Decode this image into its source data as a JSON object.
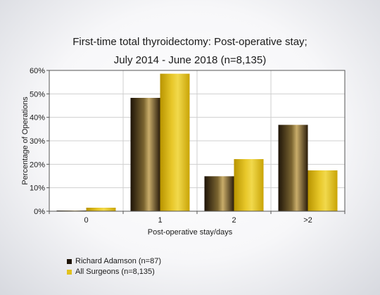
{
  "chart_data": {
    "type": "bar",
    "title": "First-time total thyroidectomy: Post-operative stay;",
    "subtitle": "July 2014 - June 2018 (n=8,135)",
    "xlabel": "Post-operative stay/days",
    "ylabel": "Percentage of Operations",
    "categories": [
      "0",
      "1",
      "2",
      ">2"
    ],
    "ylim": [
      0,
      60
    ],
    "yticks": [
      "0%",
      "10%",
      "20%",
      "30%",
      "40%",
      "50%",
      "60%"
    ],
    "grid": true,
    "legend_position": "bottom-left",
    "series": [
      {
        "name": "Richard Adamson (n=87)",
        "values": [
          0.3,
          48.3,
          14.9,
          36.8
        ],
        "color": "#3a2a12"
      },
      {
        "name": "All Surgeons (n=8,135)",
        "values": [
          1.5,
          58.6,
          22.2,
          17.4
        ],
        "color": "#d4b012"
      }
    ]
  }
}
